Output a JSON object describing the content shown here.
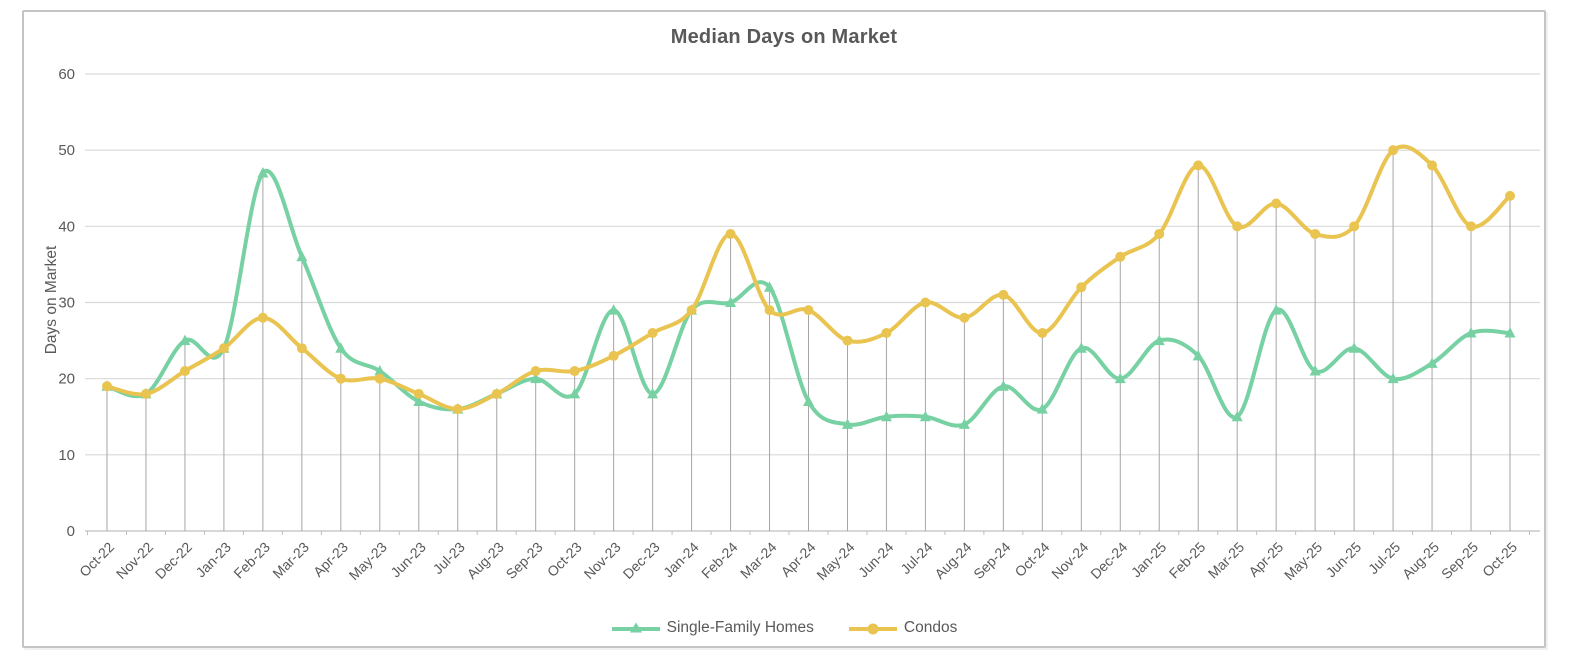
{
  "title": "Median Days on Market",
  "y_axis_title": "Days on Market",
  "colors": {
    "single_family": "#77d1a3",
    "condos": "#e9c451",
    "gridline": "#d9d9d9",
    "dropline": "#a6a6a6",
    "axis_line": "#bfbfbf",
    "text": "#595959"
  },
  "legend": {
    "items": [
      {
        "label": "Single-Family Homes",
        "marker": "triangle-marker-icon"
      },
      {
        "label": "Condos",
        "marker": "circle-marker-icon"
      }
    ]
  },
  "chart_data": {
    "type": "line",
    "title": "Median Days on Market",
    "xlabel": "",
    "ylabel": "Days on Market",
    "ylim": [
      0,
      60
    ],
    "ytick_step": 10,
    "grid": true,
    "legend_position": "bottom",
    "smooth_lines": true,
    "drop_lines": true,
    "categories": [
      "Oct-22",
      "Nov-22",
      "Dec-22",
      "Jan-23",
      "Feb-23",
      "Mar-23",
      "Apr-23",
      "May-23",
      "Jun-23",
      "Jul-23",
      "Aug-23",
      "Sep-23",
      "Oct-23",
      "Nov-23",
      "Dec-23",
      "Jan-24",
      "Feb-24",
      "Mar-24",
      "Apr-24",
      "May-24",
      "Jun-24",
      "Jul-24",
      "Aug-24",
      "Sep-24",
      "Oct-24",
      "Nov-24",
      "Dec-24",
      "Jan-25",
      "Feb-25",
      "Mar-25",
      "Apr-25",
      "May-25",
      "Jun-25",
      "Jul-25",
      "Aug-25",
      "Sep-25",
      "Oct-25"
    ],
    "series": [
      {
        "name": "Single-Family Homes",
        "color": "#77d1a3",
        "marker": "triangle",
        "values": [
          19,
          18,
          25,
          24,
          47,
          36,
          24,
          21,
          17,
          16,
          18,
          20,
          18,
          29,
          18,
          29,
          30,
          32,
          17,
          14,
          15,
          15,
          14,
          19,
          16,
          24,
          20,
          25,
          23,
          15,
          29,
          21,
          24,
          20,
          22,
          26,
          26
        ]
      },
      {
        "name": "Condos",
        "color": "#e9c451",
        "marker": "circle",
        "values": [
          19,
          18,
          21,
          24,
          28,
          24,
          20,
          20,
          18,
          16,
          18,
          21,
          21,
          23,
          26,
          29,
          39,
          29,
          29,
          25,
          26,
          30,
          28,
          31,
          26,
          32,
          36,
          39,
          48,
          40,
          43,
          39,
          40,
          50,
          48,
          40,
          44
        ]
      }
    ]
  }
}
